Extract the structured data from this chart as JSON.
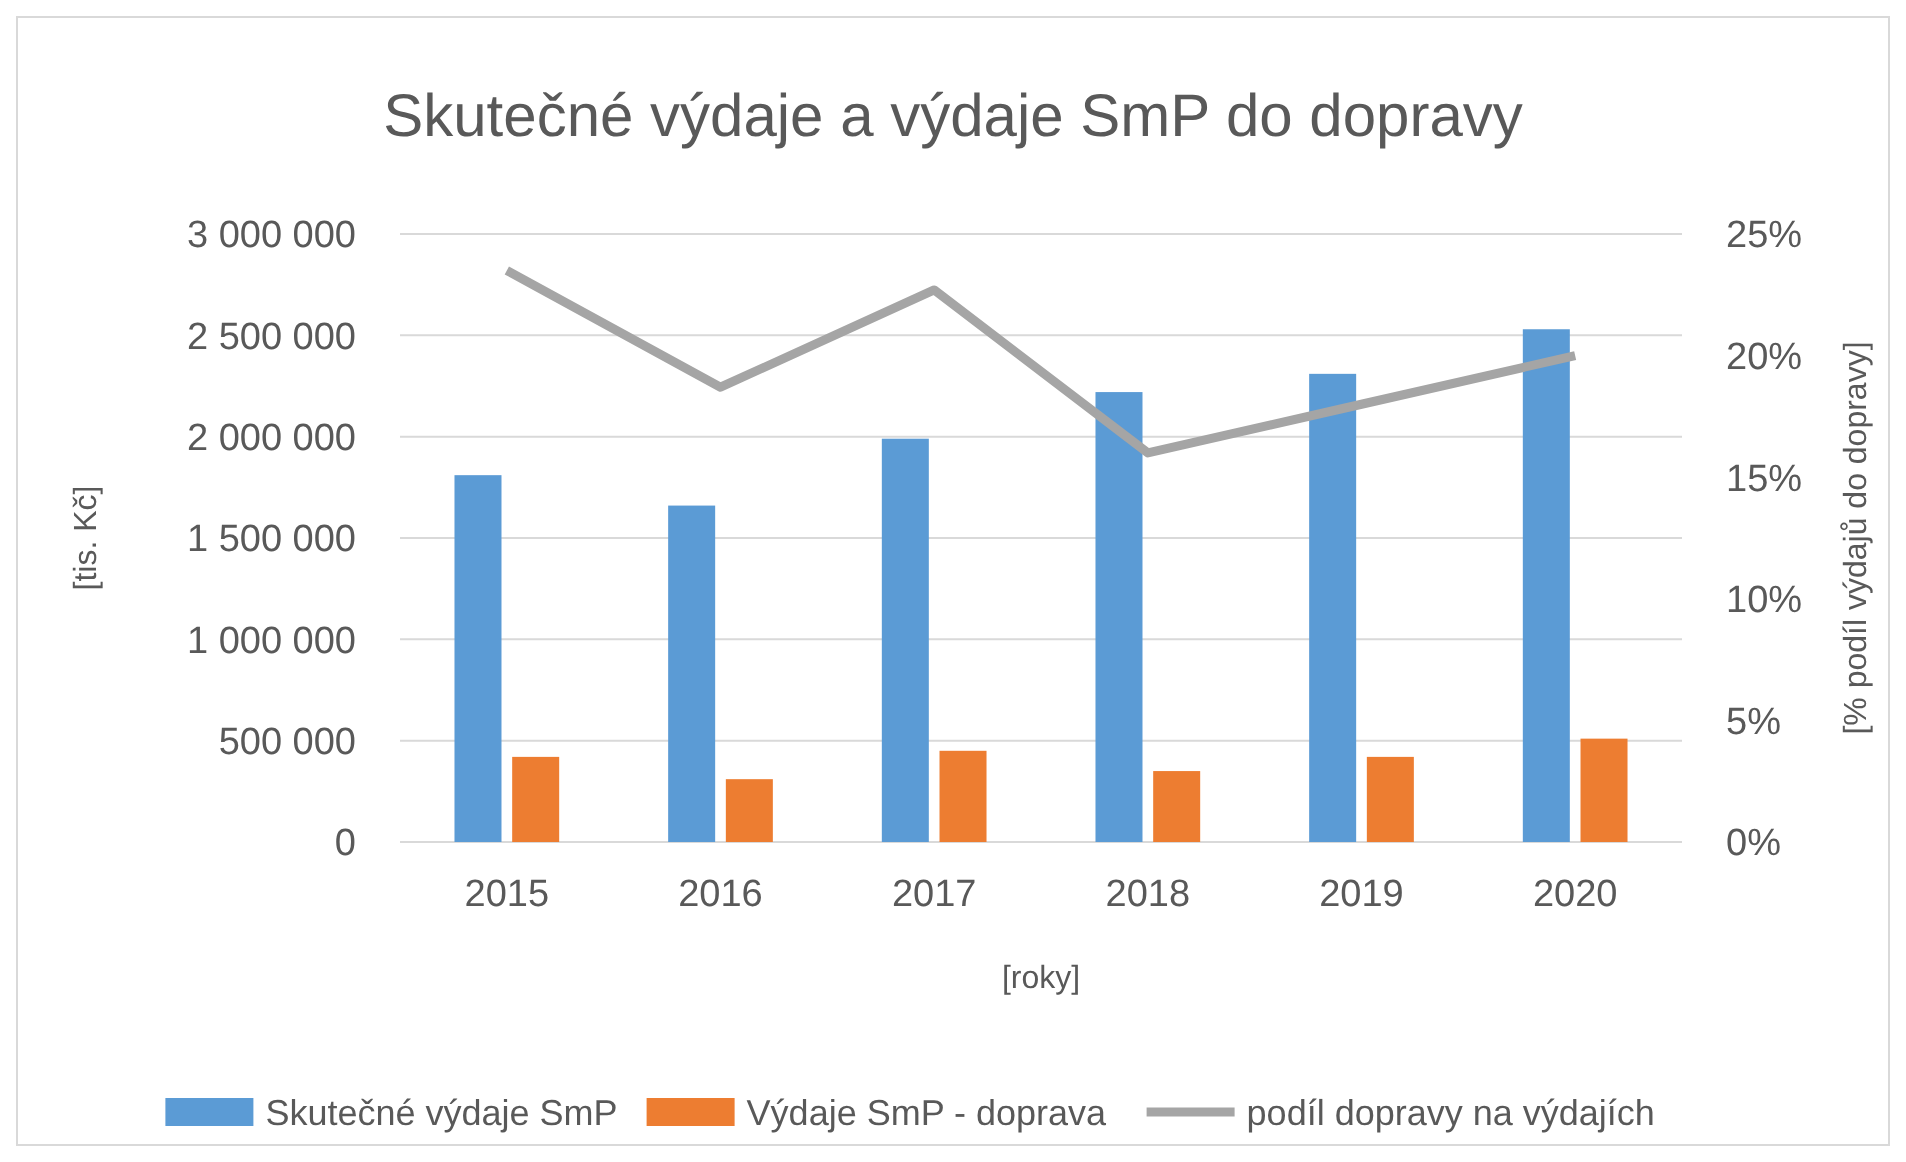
{
  "chart_data": {
    "type": "bar",
    "title": "Skutečné výdaje a výdaje SmP do dopravy",
    "xlabel": "[roky]",
    "ylabel": "[tis. Kč]",
    "y2label": "[% podíl výdajů do dopravy]",
    "categories": [
      "2015",
      "2016",
      "2017",
      "2018",
      "2019",
      "2020"
    ],
    "series": [
      {
        "name": "Skutečné výdaje SmP",
        "color": "#5b9bd5",
        "values": [
          1810000,
          1660000,
          1990000,
          2220000,
          2310000,
          2530000
        ]
      },
      {
        "name": "Výdaje SmP - doprava",
        "color": "#ed7d31",
        "values": [
          420000,
          310000,
          450000,
          350000,
          420000,
          510000
        ]
      },
      {
        "name": "podíl dopravy na výdajích",
        "type": "line",
        "axis": "y2",
        "color": "#a5a5a5",
        "values": [
          23.5,
          18.7,
          22.7,
          16.0,
          18.0,
          20.0
        ]
      }
    ],
    "ylim": [
      0,
      3000000
    ],
    "yticks": [
      {
        "value": 0,
        "label": "0"
      },
      {
        "value": 500000,
        "label": "500 000"
      },
      {
        "value": 1000000,
        "label": "1 000 000"
      },
      {
        "value": 1500000,
        "label": "1 500 000"
      },
      {
        "value": 2000000,
        "label": "2 000 000"
      },
      {
        "value": 2500000,
        "label": "2 500 000"
      },
      {
        "value": 3000000,
        "label": "3 000 000"
      }
    ],
    "y2lim": [
      0,
      25
    ],
    "y2ticks": [
      {
        "value": 0,
        "label": "0%"
      },
      {
        "value": 5,
        "label": "5%"
      },
      {
        "value": 10,
        "label": "10%"
      },
      {
        "value": 15,
        "label": "15%"
      },
      {
        "value": 20,
        "label": "20%"
      },
      {
        "value": 25,
        "label": "25%"
      }
    ],
    "grid": "y",
    "legend": "bottom",
    "marker": "none"
  }
}
